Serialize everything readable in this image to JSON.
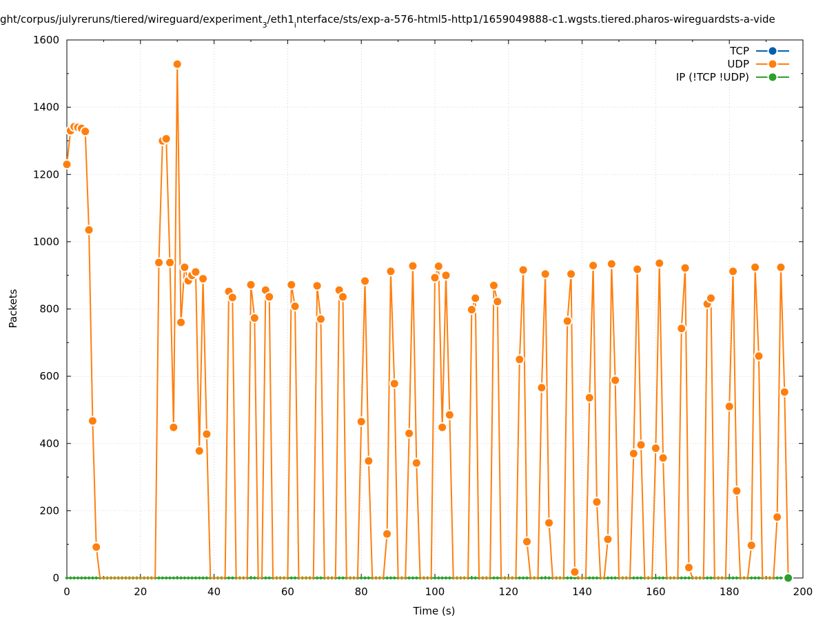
{
  "chart_data": {
    "type": "line",
    "title": "ght/corpus/julyreruns/tiered/wireguard/experiment",
    "title_sub1": "3",
    "title_mid": "/eth1",
    "title_sub2": "i",
    "title_end": "nterface/sts/exp-a-576-html5-http1/1659049888-c1.wgsts.tiered.pharos-wireguardsts-a-vide",
    "xlabel": "Time (s)",
    "ylabel": "Packets",
    "xlim": [
      0,
      200
    ],
    "ylim": [
      0,
      1600
    ],
    "xticks": [
      0,
      20,
      40,
      60,
      80,
      100,
      120,
      140,
      160,
      180,
      200
    ],
    "yticks": [
      0,
      200,
      400,
      600,
      800,
      1000,
      1200,
      1400,
      1600
    ],
    "grid": true,
    "legend_position": "top-right",
    "series": [
      {
        "name": "TCP",
        "color": "#0060ad",
        "points": []
      },
      {
        "name": "UDP",
        "color": "#ff7f0e",
        "points": [
          [
            0,
            1230
          ],
          [
            1,
            1330
          ],
          [
            2,
            1342
          ],
          [
            3,
            1340
          ],
          [
            4,
            1337
          ],
          [
            5,
            1328
          ],
          [
            6,
            1035
          ],
          [
            7,
            467
          ],
          [
            8,
            92
          ],
          [
            9,
            0
          ],
          [
            10,
            0
          ],
          [
            11,
            0
          ],
          [
            12,
            0
          ],
          [
            13,
            0
          ],
          [
            14,
            0
          ],
          [
            15,
            0
          ],
          [
            16,
            0
          ],
          [
            17,
            0
          ],
          [
            18,
            0
          ],
          [
            19,
            0
          ],
          [
            20,
            0
          ],
          [
            21,
            0
          ],
          [
            22,
            0
          ],
          [
            23,
            0
          ],
          [
            24,
            0
          ],
          [
            25,
            938
          ],
          [
            26,
            1300
          ],
          [
            27,
            1306
          ],
          [
            28,
            938
          ],
          [
            29,
            448
          ],
          [
            30,
            1528
          ],
          [
            31,
            760
          ],
          [
            32,
            924
          ],
          [
            33,
            884
          ],
          [
            34,
            900
          ],
          [
            35,
            910
          ],
          [
            36,
            378
          ],
          [
            37,
            890
          ],
          [
            38,
            428
          ],
          [
            39,
            0
          ],
          [
            40,
            0
          ],
          [
            41,
            0
          ],
          [
            42,
            0
          ],
          [
            43,
            0
          ],
          [
            44,
            852
          ],
          [
            45,
            834
          ],
          [
            46,
            0
          ],
          [
            47,
            0
          ],
          [
            48,
            0
          ],
          [
            49,
            0
          ],
          [
            50,
            872
          ],
          [
            51,
            773
          ],
          [
            52,
            0
          ],
          [
            53,
            0
          ],
          [
            54,
            856
          ],
          [
            55,
            836
          ],
          [
            56,
            0
          ],
          [
            57,
            0
          ],
          [
            58,
            0
          ],
          [
            59,
            0
          ],
          [
            60,
            0
          ],
          [
            61,
            872
          ],
          [
            62,
            808
          ],
          [
            63,
            0
          ],
          [
            64,
            0
          ],
          [
            65,
            0
          ],
          [
            66,
            0
          ],
          [
            67,
            0
          ],
          [
            68,
            869
          ],
          [
            69,
            770
          ],
          [
            70,
            0
          ],
          [
            71,
            0
          ],
          [
            72,
            0
          ],
          [
            73,
            0
          ],
          [
            74,
            856
          ],
          [
            75,
            836
          ],
          [
            76,
            0
          ],
          [
            77,
            0
          ],
          [
            78,
            0
          ],
          [
            79,
            0
          ],
          [
            80,
            465
          ],
          [
            81,
            883
          ],
          [
            82,
            348
          ],
          [
            83,
            0
          ],
          [
            84,
            0
          ],
          [
            85,
            0
          ],
          [
            86,
            0
          ],
          [
            87,
            131
          ],
          [
            88,
            912
          ],
          [
            89,
            578
          ],
          [
            90,
            0
          ],
          [
            91,
            0
          ],
          [
            92,
            0
          ],
          [
            93,
            430
          ],
          [
            94,
            928
          ],
          [
            95,
            342
          ],
          [
            96,
            0
          ],
          [
            97,
            0
          ],
          [
            98,
            0
          ],
          [
            99,
            0
          ],
          [
            100,
            893
          ],
          [
            101,
            927
          ],
          [
            102,
            448
          ],
          [
            103,
            900
          ],
          [
            104,
            485
          ],
          [
            105,
            0
          ],
          [
            106,
            0
          ],
          [
            107,
            0
          ],
          [
            108,
            0
          ],
          [
            109,
            0
          ],
          [
            110,
            798
          ],
          [
            111,
            832
          ],
          [
            112,
            0
          ],
          [
            113,
            0
          ],
          [
            114,
            0
          ],
          [
            115,
            0
          ],
          [
            116,
            870
          ],
          [
            117,
            822
          ],
          [
            118,
            0
          ],
          [
            119,
            0
          ],
          [
            120,
            0
          ],
          [
            121,
            0
          ],
          [
            122,
            0
          ],
          [
            123,
            650
          ],
          [
            124,
            916
          ],
          [
            125,
            108
          ],
          [
            126,
            0
          ],
          [
            127,
            0
          ],
          [
            128,
            0
          ],
          [
            129,
            566
          ],
          [
            130,
            904
          ],
          [
            131,
            164
          ],
          [
            132,
            0
          ],
          [
            133,
            0
          ],
          [
            134,
            0
          ],
          [
            135,
            0
          ],
          [
            136,
            764
          ],
          [
            137,
            904
          ],
          [
            138,
            18
          ],
          [
            139,
            0
          ],
          [
            140,
            0
          ],
          [
            141,
            0
          ],
          [
            142,
            536
          ],
          [
            143,
            929
          ],
          [
            144,
            226
          ],
          [
            145,
            0
          ],
          [
            146,
            0
          ],
          [
            147,
            115
          ],
          [
            148,
            934
          ],
          [
            149,
            588
          ],
          [
            150,
            0
          ],
          [
            151,
            0
          ],
          [
            152,
            0
          ],
          [
            153,
            0
          ],
          [
            154,
            370
          ],
          [
            155,
            918
          ],
          [
            156,
            396
          ],
          [
            157,
            0
          ],
          [
            158,
            0
          ],
          [
            159,
            0
          ],
          [
            160,
            386
          ],
          [
            161,
            936
          ],
          [
            162,
            357
          ],
          [
            163,
            0
          ],
          [
            164,
            0
          ],
          [
            165,
            0
          ],
          [
            166,
            0
          ],
          [
            167,
            742
          ],
          [
            168,
            922
          ],
          [
            169,
            31
          ],
          [
            170,
            0
          ],
          [
            171,
            0
          ],
          [
            172,
            0
          ],
          [
            173,
            0
          ],
          [
            174,
            815
          ],
          [
            175,
            832
          ],
          [
            176,
            0
          ],
          [
            177,
            0
          ],
          [
            178,
            0
          ],
          [
            179,
            0
          ],
          [
            180,
            510
          ],
          [
            181,
            912
          ],
          [
            182,
            259
          ],
          [
            183,
            0
          ],
          [
            184,
            0
          ],
          [
            185,
            0
          ],
          [
            186,
            97
          ],
          [
            187,
            924
          ],
          [
            188,
            660
          ],
          [
            189,
            0
          ],
          [
            190,
            0
          ],
          [
            191,
            0
          ],
          [
            192,
            0
          ],
          [
            193,
            181
          ],
          [
            194,
            924
          ],
          [
            195,
            553
          ],
          [
            196,
            0
          ]
        ]
      },
      {
        "name": "IP (!TCP  !UDP)",
        "color": "#2ca02c",
        "points": "zero-per-second",
        "x_end": 196
      }
    ]
  }
}
